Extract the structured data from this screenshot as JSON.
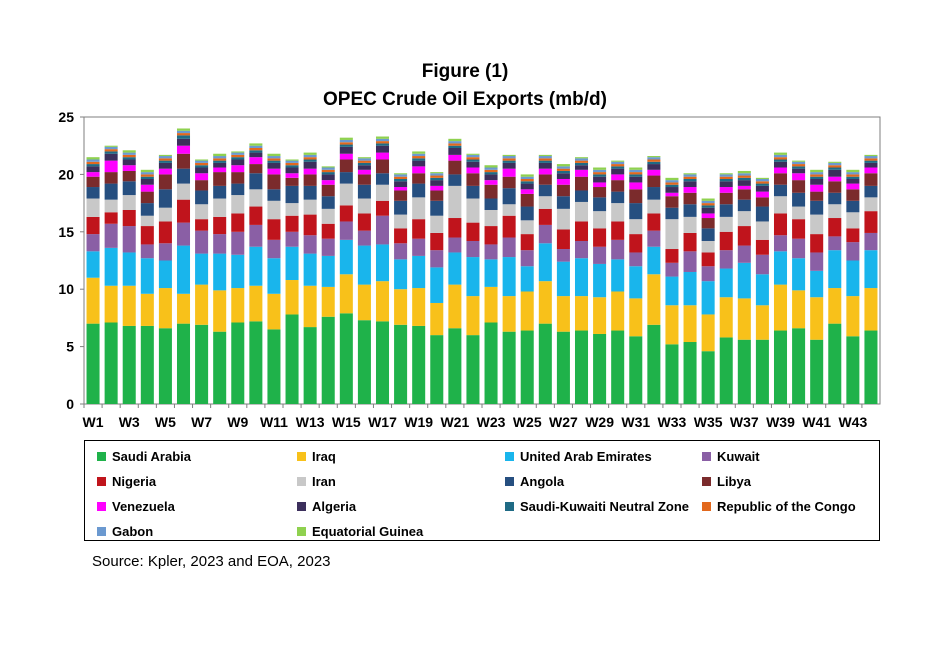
{
  "chart_data": {
    "type": "bar",
    "stacked": true,
    "title": "Figure (1)",
    "subtitle": "OPEC Crude Oil Exports (mb/d)",
    "xlabel": "",
    "ylabel": "",
    "ylim": [
      0,
      25
    ],
    "yticks": [
      0,
      5,
      10,
      15,
      20,
      25
    ],
    "grid": false,
    "legend_position": "bottom",
    "categories": [
      "W1",
      "W2",
      "W3",
      "W4",
      "W5",
      "W6",
      "W7",
      "W8",
      "W9",
      "W10",
      "W11",
      "W12",
      "W13",
      "W14",
      "W15",
      "W16",
      "W17",
      "W18",
      "W19",
      "W20",
      "W21",
      "W22",
      "W23",
      "W24",
      "W25",
      "W26",
      "W27",
      "W28",
      "W29",
      "W30",
      "W31",
      "W32",
      "W33",
      "W34",
      "W35",
      "W36",
      "W37",
      "W38",
      "W39",
      "W40",
      "W41",
      "W42",
      "W43",
      "W44"
    ],
    "tick_labels": [
      "W1",
      "W3",
      "W5",
      "W7",
      "W9",
      "W11",
      "W13",
      "W15",
      "W17",
      "W19",
      "W21",
      "W23",
      "W25",
      "W27",
      "W29",
      "W31",
      "W33",
      "W35",
      "W37",
      "W39",
      "W41",
      "W43"
    ],
    "series": [
      {
        "name": "Saudi Arabia",
        "color": "#1fb24a",
        "values": [
          7.0,
          7.1,
          6.8,
          6.8,
          6.6,
          7.0,
          6.9,
          6.3,
          7.1,
          7.2,
          6.5,
          7.8,
          6.7,
          7.6,
          7.9,
          7.3,
          7.2,
          6.9,
          6.8,
          6.0,
          6.6,
          6.0,
          7.1,
          6.3,
          6.4,
          7.0,
          6.3,
          6.4,
          6.1,
          6.4,
          5.9,
          6.9,
          5.2,
          5.4,
          4.6,
          5.8,
          5.6,
          5.6,
          6.4,
          6.6,
          5.6,
          7.0,
          5.9,
          6.4
        ]
      },
      {
        "name": "Iraq",
        "color": "#f8c11a",
        "values": [
          4.0,
          3.2,
          3.5,
          2.8,
          3.5,
          2.6,
          3.5,
          3.6,
          3.0,
          3.1,
          3.1,
          3.0,
          3.6,
          2.6,
          3.4,
          3.1,
          3.5,
          3.1,
          3.3,
          2.8,
          3.8,
          3.4,
          3.1,
          3.1,
          3.4,
          3.7,
          3.1,
          3.0,
          3.2,
          3.4,
          3.3,
          4.4,
          3.4,
          3.2,
          3.2,
          3.5,
          3.6,
          3.0,
          4.0,
          3.3,
          3.7,
          3.1,
          3.5,
          3.7
        ]
      },
      {
        "name": "United Arab Emirates",
        "color": "#19b5ec",
        "values": [
          2.3,
          3.3,
          2.9,
          3.1,
          2.4,
          4.2,
          2.7,
          3.2,
          2.9,
          3.4,
          3.1,
          2.9,
          2.8,
          2.7,
          3.0,
          3.4,
          3.2,
          2.6,
          2.8,
          3.1,
          2.8,
          3.4,
          2.4,
          3.4,
          2.2,
          3.3,
          3.0,
          3.3,
          2.9,
          2.8,
          2.8,
          2.4,
          2.5,
          2.9,
          2.9,
          2.5,
          3.1,
          2.7,
          2.9,
          2.8,
          2.3,
          3.3,
          3.1,
          3.3
        ]
      },
      {
        "name": "Kuwait",
        "color": "#8a5fa5",
        "values": [
          1.5,
          2.1,
          2.3,
          1.2,
          1.5,
          2.0,
          2.0,
          1.7,
          2.0,
          1.9,
          1.6,
          1.3,
          1.6,
          1.5,
          1.6,
          1.3,
          2.5,
          1.4,
          1.5,
          1.5,
          1.3,
          1.4,
          1.3,
          1.7,
          1.4,
          1.6,
          1.1,
          1.5,
          1.5,
          1.7,
          1.2,
          1.4,
          1.2,
          1.8,
          1.3,
          1.6,
          1.5,
          1.7,
          1.4,
          1.7,
          1.6,
          1.2,
          1.6,
          1.5
        ]
      },
      {
        "name": "Nigeria",
        "color": "#c0141c",
        "values": [
          1.5,
          1.0,
          1.4,
          1.6,
          1.9,
          2.0,
          1.0,
          1.5,
          1.6,
          1.6,
          1.8,
          1.4,
          1.8,
          1.3,
          1.4,
          1.5,
          1.3,
          1.3,
          1.7,
          1.5,
          1.7,
          1.6,
          1.6,
          1.9,
          1.4,
          1.4,
          1.7,
          1.7,
          1.6,
          1.6,
          1.6,
          1.5,
          1.2,
          1.6,
          1.2,
          1.6,
          1.7,
          1.3,
          1.9,
          1.7,
          1.6,
          1.6,
          1.2,
          1.9
        ]
      },
      {
        "name": "Iran",
        "color": "#c8c8c8",
        "values": [
          1.6,
          1.1,
          1.3,
          0.9,
          1.2,
          1.4,
          1.3,
          1.6,
          1.6,
          1.5,
          1.6,
          1.1,
          1.3,
          1.3,
          1.9,
          1.3,
          1.4,
          1.2,
          1.9,
          1.5,
          2.8,
          2.1,
          1.4,
          1.0,
          1.2,
          1.1,
          1.8,
          1.7,
          1.5,
          1.6,
          1.3,
          1.2,
          2.6,
          1.4,
          1.0,
          1.3,
          1.3,
          1.6,
          1.5,
          1.1,
          1.7,
          1.2,
          1.4,
          1.2
        ]
      },
      {
        "name": "Angola",
        "color": "#264f80",
        "values": [
          1.0,
          1.4,
          1.2,
          1.1,
          1.6,
          1.3,
          1.2,
          1.1,
          1.0,
          1.4,
          1.0,
          1.5,
          1.2,
          1.1,
          1.0,
          1.2,
          1.0,
          1.2,
          1.2,
          1.3,
          1.0,
          1.1,
          1.0,
          1.4,
          1.2,
          1.0,
          1.1,
          1.0,
          1.2,
          1.0,
          1.4,
          1.1,
          1.0,
          1.1,
          1.1,
          1.1,
          1.0,
          1.3,
          1.0,
          1.2,
          1.2,
          1.0,
          1.0,
          1.0
        ]
      },
      {
        "name": "Libya",
        "color": "#7b2b2c",
        "values": [
          0.9,
          1.0,
          0.9,
          1.0,
          1.3,
          1.3,
          0.9,
          1.2,
          1.0,
          0.8,
          1.3,
          0.7,
          1.0,
          1.0,
          1.1,
          0.9,
          1.2,
          0.9,
          0.9,
          0.9,
          1.2,
          1.1,
          1.2,
          1.0,
          1.1,
          0.9,
          1.0,
          1.2,
          0.9,
          1.0,
          1.2,
          1.0,
          1.0,
          1.0,
          0.9,
          1.0,
          0.9,
          0.8,
          1.0,
          1.1,
          0.8,
          1.0,
          1.0,
          1.1
        ]
      },
      {
        "name": "Venezuela",
        "color": "#ff00ff",
        "values": [
          0.4,
          1.0,
          0.5,
          0.6,
          0.5,
          0.7,
          0.6,
          0.4,
          0.6,
          0.6,
          0.5,
          0.4,
          0.5,
          0.4,
          0.5,
          0.4,
          0.6,
          0.3,
          0.6,
          0.4,
          0.5,
          0.5,
          0.4,
          0.7,
          0.4,
          0.5,
          0.5,
          0.6,
          0.4,
          0.5,
          0.6,
          0.5,
          0.3,
          0.5,
          0.4,
          0.5,
          0.3,
          0.5,
          0.5,
          0.6,
          0.6,
          0.4,
          0.5,
          0.5
        ]
      },
      {
        "name": "Algeria",
        "color": "#3c2f5c",
        "values": [
          0.5,
          0.6,
          0.5,
          0.5,
          0.5,
          0.6,
          0.5,
          0.4,
          0.5,
          0.4,
          0.5,
          0.5,
          0.6,
          0.5,
          0.6,
          0.4,
          0.6,
          0.5,
          0.5,
          0.5,
          0.6,
          0.5,
          0.5,
          0.5,
          0.5,
          0.5,
          0.5,
          0.4,
          0.5,
          0.5,
          0.5,
          0.5,
          0.5,
          0.5,
          0.5,
          0.5,
          0.5,
          0.5,
          0.5,
          0.4,
          0.5,
          0.6,
          0.4,
          0.4
        ]
      },
      {
        "name": "Saudi-Kuwaiti Neutral Zone",
        "color": "#1f6b85",
        "values": [
          0.2,
          0.2,
          0.2,
          0.2,
          0.2,
          0.3,
          0.2,
          0.2,
          0.2,
          0.2,
          0.2,
          0.2,
          0.2,
          0.2,
          0.2,
          0.2,
          0.2,
          0.2,
          0.2,
          0.2,
          0.2,
          0.2,
          0.2,
          0.2,
          0.2,
          0.2,
          0.2,
          0.2,
          0.2,
          0.2,
          0.2,
          0.2,
          0.2,
          0.2,
          0.2,
          0.2,
          0.2,
          0.2,
          0.2,
          0.2,
          0.2,
          0.2,
          0.2,
          0.2
        ]
      },
      {
        "name": "Republic of the Congo",
        "color": "#e2681d",
        "values": [
          0.2,
          0.2,
          0.2,
          0.2,
          0.2,
          0.2,
          0.2,
          0.2,
          0.2,
          0.2,
          0.2,
          0.2,
          0.2,
          0.2,
          0.2,
          0.2,
          0.2,
          0.2,
          0.2,
          0.2,
          0.2,
          0.2,
          0.2,
          0.2,
          0.2,
          0.2,
          0.2,
          0.2,
          0.2,
          0.2,
          0.2,
          0.2,
          0.2,
          0.2,
          0.2,
          0.2,
          0.2,
          0.2,
          0.2,
          0.2,
          0.2,
          0.2,
          0.2,
          0.2
        ]
      },
      {
        "name": "Gabon",
        "color": "#6b99d0",
        "values": [
          0.2,
          0.2,
          0.2,
          0.2,
          0.2,
          0.2,
          0.2,
          0.2,
          0.2,
          0.2,
          0.2,
          0.2,
          0.2,
          0.2,
          0.2,
          0.2,
          0.2,
          0.2,
          0.2,
          0.2,
          0.2,
          0.2,
          0.2,
          0.2,
          0.2,
          0.2,
          0.2,
          0.2,
          0.2,
          0.2,
          0.2,
          0.2,
          0.2,
          0.2,
          0.2,
          0.2,
          0.2,
          0.2,
          0.2,
          0.2,
          0.2,
          0.2,
          0.2,
          0.2
        ]
      },
      {
        "name": "Equatorial Guinea",
        "color": "#8fd14f",
        "values": [
          0.2,
          0.1,
          0.2,
          0.2,
          0.1,
          0.2,
          0.1,
          0.2,
          0.1,
          0.2,
          0.2,
          0.1,
          0.2,
          0.1,
          0.2,
          0.1,
          0.2,
          0.1,
          0.2,
          0.1,
          0.2,
          0.1,
          0.2,
          0.1,
          0.2,
          0.1,
          0.2,
          0.1,
          0.2,
          0.1,
          0.2,
          0.1,
          0.2,
          0.1,
          0.2,
          0.1,
          0.2,
          0.1,
          0.2,
          0.1,
          0.2,
          0.1,
          0.2,
          0.1
        ]
      }
    ],
    "source": "Source: Kpler, 2023 and EOA, 2023"
  }
}
